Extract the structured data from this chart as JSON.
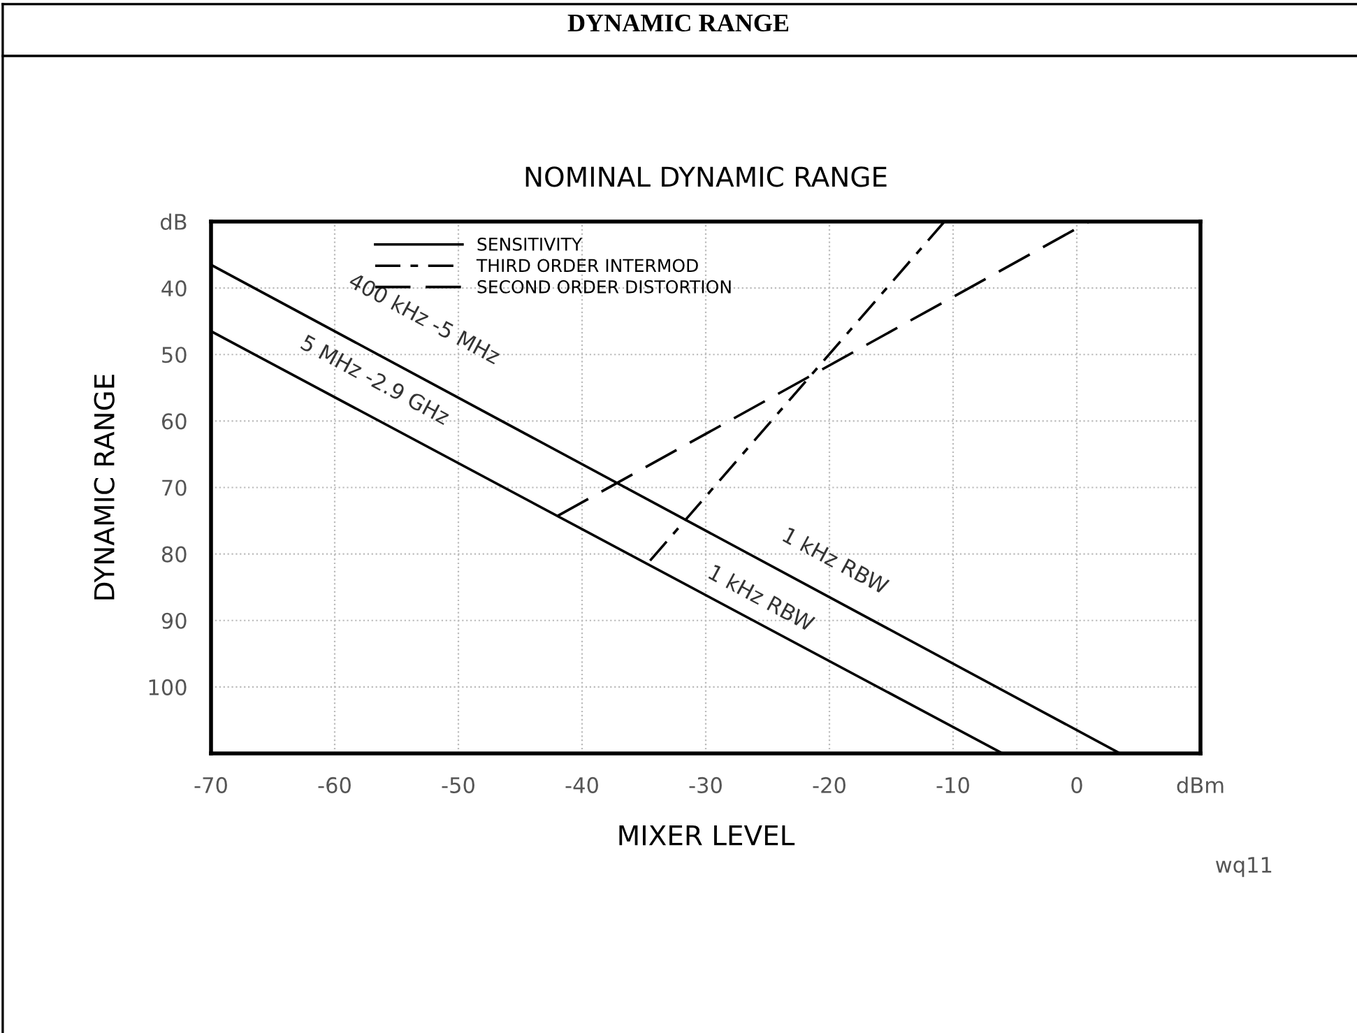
{
  "chart_data": {
    "type": "line",
    "title": "DYNAMIC RANGE",
    "subtitle": "NOMINAL DYNAMIC RANGE",
    "xlabel": "MIXER LEVEL",
    "ylabel": "DYNAMIC RANGE",
    "series": [
      {
        "name": "SENSITIVITY",
        "color": "#000000",
        "x": [
          -70,
          3.5
        ],
        "values": [
          36.5,
          110
        ],
        "line_style": "solid"
      },
      {
        "color": "#000000",
        "x": [
          -70,
          -6
        ],
        "values": [
          46.5,
          110
        ],
        "line_style": "solid"
      },
      {
        "name": "THIRD ORDER INTERMOD",
        "color": "#000000",
        "x": [
          -34.5,
          -10.7
        ],
        "values": [
          81,
          30
        ],
        "line_style": "dashdot"
      },
      {
        "name": "SECOND ORDER DISTORTION",
        "color": "#000000",
        "x": [
          -42,
          1
        ],
        "values": [
          74.3,
          30
        ],
        "line_style": "dashed"
      }
    ],
    "annotations": [
      "400 kHz -5 MHz",
      "5 MHz -2.9 GHz",
      "1 kHz RBW",
      "1 kHz RBW",
      "wq11"
    ],
    "xlim": [
      -70,
      10
    ],
    "ylim": [
      110,
      30
    ],
    "xticks": [
      -70,
      -60,
      -50,
      -40,
      -30,
      -20,
      -10,
      0,
      {
        "value": 10,
        "label": "dBm"
      }
    ],
    "yticks": [
      {
        "value": 30,
        "label": "dB"
      },
      40,
      50,
      60,
      70,
      80,
      90,
      100
    ],
    "grid": true,
    "legend": "top left",
    "marker": "none"
  }
}
